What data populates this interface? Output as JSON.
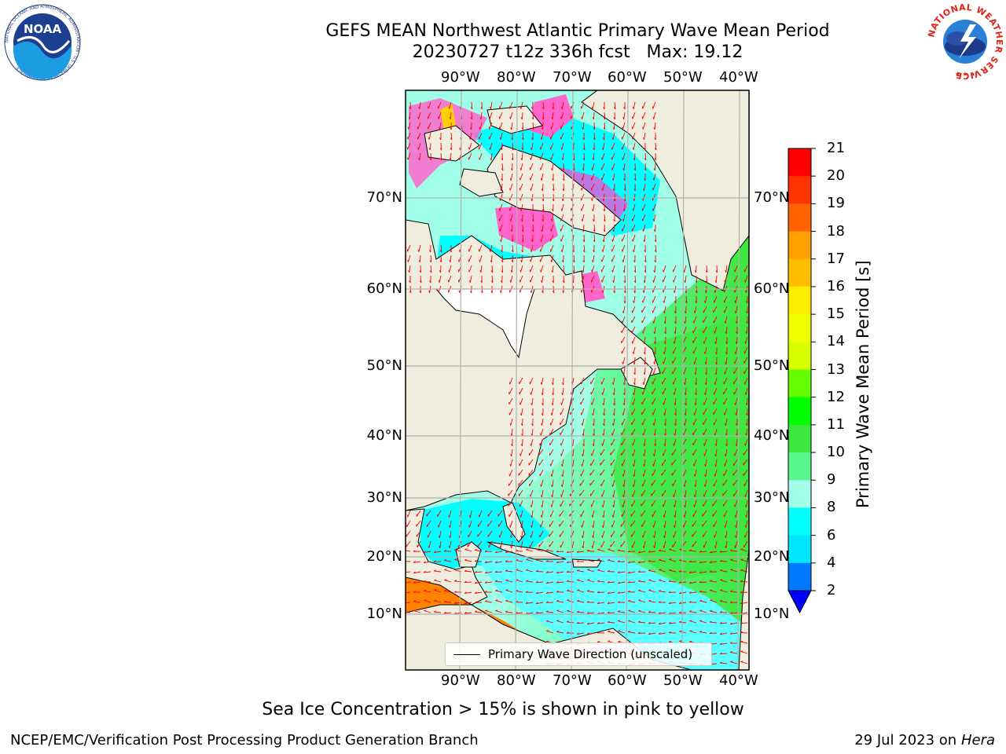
{
  "title": {
    "line1": "GEFS MEAN Northwest Atlantic Primary Wave Mean Period",
    "line2": "20230727 t12z 336h fcst   Max: 19.12"
  },
  "logos": {
    "left": "NOAA",
    "left_ring": "NATIONAL OCEANIC AND ATMOSPHERIC ADMINISTRATION · U.S. DEPARTMENT OF COMMERCE",
    "right_ring": "NATIONAL WEATHER SERVICE"
  },
  "map": {
    "lon_labels": [
      "90°W",
      "80°W",
      "70°W",
      "60°W",
      "50°W",
      "40°W"
    ],
    "lat_labels": [
      "70°N",
      "60°N",
      "50°N",
      "40°N",
      "30°N",
      "20°N",
      "10°N"
    ],
    "legend_label": "Primary Wave Direction (unscaled)",
    "arrow_color": "#ff0000",
    "land_color": "#efedde"
  },
  "colorbar": {
    "title": "Primary Wave Mean Period [s]",
    "ticks": [
      "21",
      "20",
      "19",
      "18",
      "17",
      "16",
      "15",
      "14",
      "13",
      "12",
      "11",
      "10",
      "9",
      "8",
      "6",
      "4",
      "2"
    ],
    "colors_top_to_bottom": [
      "#ff0000",
      "#ff3200",
      "#ff6400",
      "#ff8200",
      "#ffa000",
      "#ffbe00",
      "#ffee00",
      "#f0ff00",
      "#d8ff00",
      "#b4ff00",
      "#64ff00",
      "#00ff00",
      "#3ee63e",
      "#5af58c",
      "#a0ffe6",
      "#5affff",
      "#00ffff",
      "#00e6ff",
      "#0078ff",
      "#0000ff"
    ]
  },
  "footer": {
    "note": "Sea Ice Concentration > 15% is shown in pink to yellow",
    "credit": "NCEP/EMC/Verification Post Processing Product Generation Branch",
    "date": "29 Jul 2023 on ",
    "machine": "Hera"
  }
}
